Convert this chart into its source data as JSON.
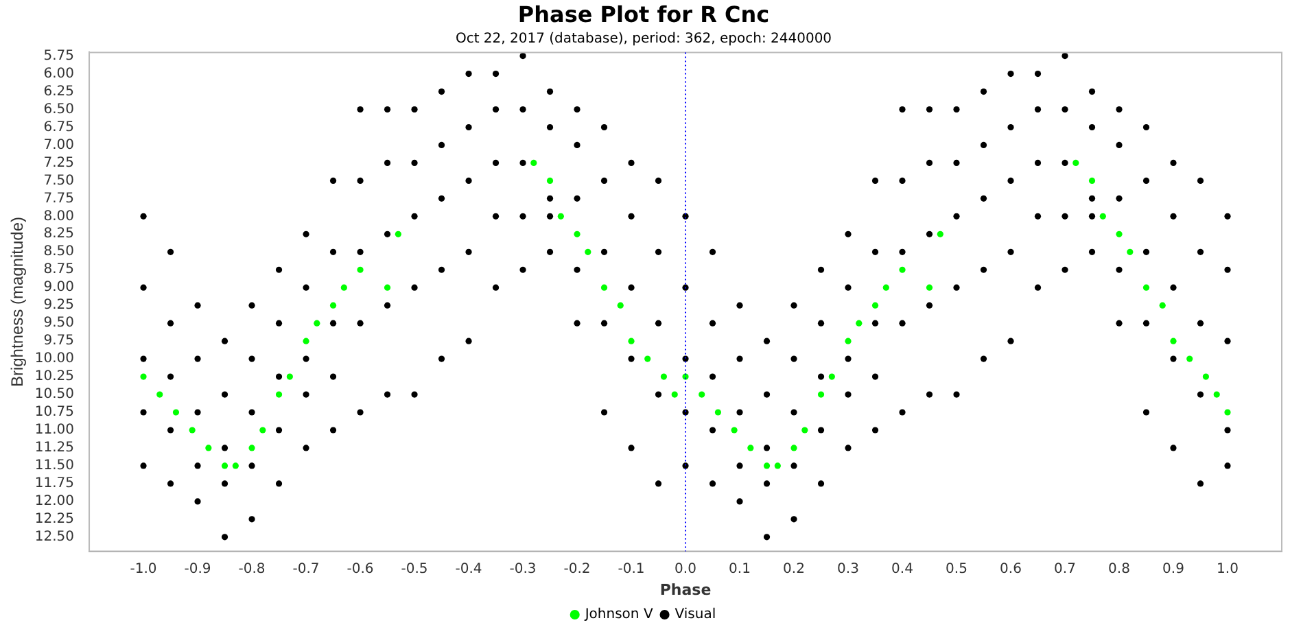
{
  "chart_data": {
    "type": "scatter",
    "title": "Phase Plot for R Cnc",
    "subtitle": "Oct 22, 2017 (database), period: 362, epoch: 2440000",
    "xlabel": "Phase",
    "ylabel": "Brightness (magnitude)",
    "xlim": [
      -1.1,
      1.1
    ],
    "xticks": [
      {
        "value": -1,
        "label": "-1.0"
      },
      -0.9,
      -0.8,
      -0.7,
      -0.6,
      -0.5,
      -0.4,
      -0.3,
      -0.2,
      -0.1,
      {
        "value": 0,
        "label": "0.0"
      },
      0.1,
      0.2,
      0.3,
      0.4,
      0.5,
      0.6,
      0.7,
      0.8,
      0.9,
      {
        "value": 1,
        "label": "1.0"
      }
    ],
    "ylim": [
      12.7,
      5.7
    ],
    "yticks": [
      5.75,
      {
        "value": 6,
        "label": "6.00"
      },
      6.25,
      {
        "value": 6.5,
        "label": "6.50"
      },
      6.75,
      {
        "value": 7,
        "label": "7.00"
      },
      7.25,
      {
        "value": 7.5,
        "label": "7.50"
      },
      7.75,
      {
        "value": 8,
        "label": "8.00"
      },
      8.25,
      {
        "value": 8.5,
        "label": "8.50"
      },
      8.75,
      {
        "value": 9,
        "label": "9.00"
      },
      9.25,
      {
        "value": 9.5,
        "label": "9.50"
      },
      9.75,
      {
        "value": 10,
        "label": "10.00"
      },
      10.25,
      {
        "value": 10.5,
        "label": "10.50"
      },
      10.75,
      {
        "value": 11,
        "label": "11.00"
      },
      11.25,
      {
        "value": 11.5,
        "label": "11.50"
      },
      11.75,
      {
        "value": 12,
        "label": "12.00"
      },
      12.25,
      {
        "value": 12.5,
        "label": "12.50"
      }
    ],
    "grid": false,
    "legend": "bottom",
    "marker": "circle",
    "ref_lines": [
      {
        "axis": "x",
        "value": 0,
        "color": "#0000ff",
        "line_style": "dotted"
      }
    ],
    "series": [
      {
        "name": "Johnson V",
        "color": "#00ff00",
        "x": [
          -1,
          -0.97,
          -0.94,
          -0.91,
          -0.88,
          -0.85,
          -0.83,
          -0.8,
          -0.78,
          -0.75,
          -0.73,
          -0.7,
          -0.68,
          -0.65,
          -0.63,
          -0.6,
          -0.55,
          -0.53,
          -0.28,
          -0.25,
          -0.23,
          -0.2,
          -0.18,
          -0.15,
          -0.12,
          -0.1,
          -0.07,
          -0.04,
          -0.02,
          0,
          0.03,
          0.06,
          0.09,
          0.12,
          0.15,
          0.17,
          0.2,
          0.22,
          0.25,
          0.27,
          0.3,
          0.32,
          0.35,
          0.37,
          0.4,
          0.45,
          0.47,
          0.72,
          0.75,
          0.77,
          0.8,
          0.82,
          0.85,
          0.88,
          0.9,
          0.93,
          0.96,
          0.98,
          1
        ],
        "values": [
          10.25,
          10.5,
          10.75,
          11,
          11.25,
          11.5,
          11.5,
          11.25,
          11,
          10.5,
          10.25,
          9.75,
          9.5,
          9.25,
          9,
          8.75,
          9,
          8.25,
          7.25,
          7.5,
          8,
          8.25,
          8.5,
          9,
          9.25,
          9.75,
          10,
          10.25,
          10.5,
          10.25,
          10.5,
          10.75,
          11,
          11.25,
          11.5,
          11.5,
          11.25,
          11,
          10.5,
          10.25,
          9.75,
          9.5,
          9.25,
          9,
          8.75,
          9,
          8.25,
          7.25,
          7.5,
          8,
          8.25,
          8.5,
          9,
          9.25,
          9.75,
          10,
          10.25,
          10.5,
          10.75
        ]
      },
      {
        "name": "Visual",
        "color": "#000000",
        "x": [
          -1,
          -1,
          -1,
          -1,
          -1,
          -0.95,
          -0.95,
          -0.95,
          -0.95,
          -0.95,
          -0.9,
          -0.9,
          -0.9,
          -0.9,
          -0.9,
          -0.85,
          -0.85,
          -0.85,
          -0.85,
          -0.85,
          -0.8,
          -0.8,
          -0.8,
          -0.8,
          -0.8,
          -0.75,
          -0.75,
          -0.75,
          -0.75,
          -0.75,
          -0.7,
          -0.7,
          -0.7,
          -0.7,
          -0.7,
          -0.65,
          -0.65,
          -0.65,
          -0.65,
          -0.65,
          -0.6,
          -0.6,
          -0.6,
          -0.6,
          -0.6,
          -0.55,
          -0.55,
          -0.55,
          -0.55,
          -0.55,
          -0.5,
          -0.5,
          -0.5,
          -0.5,
          -0.5,
          -0.45,
          -0.45,
          -0.45,
          -0.45,
          -0.45,
          -0.4,
          -0.4,
          -0.4,
          -0.4,
          -0.4,
          -0.35,
          -0.35,
          -0.35,
          -0.35,
          -0.35,
          -0.3,
          -0.3,
          -0.3,
          -0.3,
          -0.3,
          -0.25,
          -0.25,
          -0.25,
          -0.25,
          -0.25,
          -0.2,
          -0.2,
          -0.2,
          -0.2,
          -0.2,
          -0.15,
          -0.15,
          -0.15,
          -0.15,
          -0.15,
          -0.1,
          -0.1,
          -0.1,
          -0.1,
          -0.1,
          -0.05,
          -0.05,
          -0.05,
          -0.05,
          -0.05,
          0,
          0,
          0,
          0,
          0,
          0.05,
          0.05,
          0.05,
          0.05,
          0.05,
          0.1,
          0.1,
          0.1,
          0.1,
          0.1,
          0.15,
          0.15,
          0.15,
          0.15,
          0.15,
          0.2,
          0.2,
          0.2,
          0.2,
          0.2,
          0.25,
          0.25,
          0.25,
          0.25,
          0.25,
          0.3,
          0.3,
          0.3,
          0.3,
          0.3,
          0.35,
          0.35,
          0.35,
          0.35,
          0.35,
          0.4,
          0.4,
          0.4,
          0.4,
          0.4,
          0.45,
          0.45,
          0.45,
          0.45,
          0.45,
          0.5,
          0.5,
          0.5,
          0.5,
          0.5,
          0.55,
          0.55,
          0.55,
          0.55,
          0.55,
          0.6,
          0.6,
          0.6,
          0.6,
          0.6,
          0.65,
          0.65,
          0.65,
          0.65,
          0.65,
          0.7,
          0.7,
          0.7,
          0.7,
          0.7,
          0.75,
          0.75,
          0.75,
          0.75,
          0.75,
          0.8,
          0.8,
          0.8,
          0.8,
          0.8,
          0.85,
          0.85,
          0.85,
          0.85,
          0.85,
          0.9,
          0.9,
          0.9,
          0.9,
          0.9,
          0.95,
          0.95,
          0.95,
          0.95,
          0.95,
          1,
          1,
          1,
          1,
          1
        ],
        "values": [
          8,
          9,
          10,
          10.75,
          11.5,
          8.5,
          9.5,
          10.25,
          11,
          11.75,
          9.25,
          10,
          10.75,
          11.5,
          12,
          9.75,
          10.5,
          11.25,
          11.75,
          12.5,
          9.25,
          10,
          10.75,
          11.5,
          12.25,
          8.75,
          9.5,
          10.25,
          11,
          11.75,
          8.25,
          9,
          10,
          10.5,
          11.25,
          7.5,
          8.5,
          9.5,
          10.25,
          11,
          6.5,
          7.5,
          8.5,
          9.5,
          10.75,
          6.5,
          7.25,
          8.25,
          9.25,
          10.5,
          6.5,
          7.25,
          8,
          9,
          10.5,
          6.25,
          7,
          7.75,
          8.75,
          10,
          6,
          6.75,
          7.5,
          8.5,
          9.75,
          6,
          6.5,
          7.25,
          8,
          9,
          5.75,
          6.5,
          7.25,
          8,
          8.75,
          6.25,
          6.75,
          7.75,
          8,
          8.5,
          6.5,
          7,
          7.75,
          8.75,
          9.5,
          6.75,
          7.5,
          8.5,
          9.5,
          10.75,
          7.25,
          8,
          9,
          10,
          11.25,
          7.5,
          8.5,
          9.5,
          10.5,
          11.75,
          8,
          9,
          10,
          10.75,
          11.5,
          8.5,
          9.5,
          10.25,
          11,
          11.75,
          9.25,
          10,
          10.75,
          11.5,
          12,
          9.75,
          10.5,
          11.25,
          11.75,
          12.5,
          9.25,
          10,
          10.75,
          11.5,
          12.25,
          8.75,
          9.5,
          10.25,
          11,
          11.75,
          8.25,
          9,
          10,
          10.5,
          11.25,
          7.5,
          8.5,
          9.5,
          10.25,
          11,
          6.5,
          7.5,
          8.5,
          9.5,
          10.75,
          6.5,
          7.25,
          8.25,
          9.25,
          10.5,
          6.5,
          7.25,
          8,
          9,
          10.5,
          6.25,
          7,
          7.75,
          8.75,
          10,
          6,
          6.75,
          7.5,
          8.5,
          9.75,
          6,
          6.5,
          7.25,
          8,
          9,
          5.75,
          6.5,
          7.25,
          8,
          8.75,
          6.25,
          6.75,
          7.75,
          8,
          8.5,
          6.5,
          7,
          7.75,
          8.75,
          9.5,
          6.75,
          7.5,
          8.5,
          9.5,
          10.75,
          7.25,
          8,
          9,
          10,
          11.25,
          7.5,
          8.5,
          9.5,
          10.5,
          11.75,
          8,
          8.75,
          9.75,
          11,
          11.5
        ]
      }
    ]
  }
}
